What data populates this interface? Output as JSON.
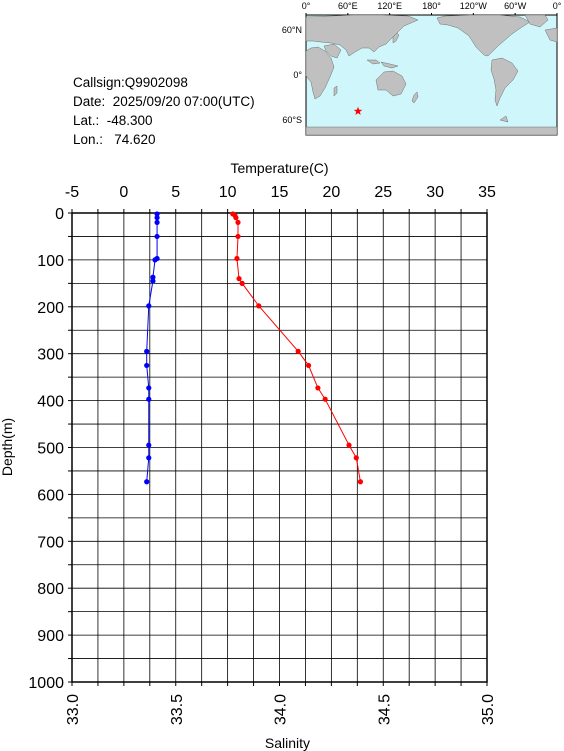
{
  "info": {
    "callsign": "Callsign:Q9902098",
    "date": "Date:  2025/09/20 07:00(UTC)",
    "lat": "Lat.:  -48.300",
    "lon": "Lon.:   74.620"
  },
  "map": {
    "lon_labels": [
      "0°",
      "60°E",
      "120°E",
      "180°",
      "120°W",
      "60°W",
      "0°"
    ],
    "lat_labels": [
      "60°N",
      "0°",
      "60°S"
    ],
    "marker": {
      "lon": 74.62,
      "lat": -48.3
    },
    "colors": {
      "ocean": "#cff7fb",
      "land": "#c0c0c0",
      "marker": "#ff0000"
    }
  },
  "chart_data": {
    "type": "line",
    "title": "",
    "ylabel": "Depth(m)",
    "ylim": [
      0,
      1000
    ],
    "y_inverted": true,
    "yticks": [
      "0",
      "100",
      "200",
      "300",
      "400",
      "500",
      "600",
      "700",
      "800",
      "900",
      "1000"
    ],
    "top_axis": {
      "label": "Temperature(C)",
      "range": [
        -5,
        35
      ],
      "ticks": [
        "-5",
        "0",
        "5",
        "10",
        "15",
        "20",
        "25",
        "30",
        "35"
      ]
    },
    "bottom_axis": {
      "label": "Salinity",
      "range": [
        33.0,
        35.0
      ],
      "ticks": [
        "33.0",
        "33.5",
        "34.0",
        "34.5",
        "35.0"
      ]
    },
    "grid": true,
    "series": [
      {
        "axis": "top",
        "color": "#ff0000",
        "points": [
          [
            10.5,
            2
          ],
          [
            10.7,
            5
          ],
          [
            10.8,
            10
          ],
          [
            11.0,
            20
          ],
          [
            11.0,
            50
          ],
          [
            10.9,
            97
          ],
          [
            11.1,
            140
          ],
          [
            11.4,
            150
          ],
          [
            13.0,
            198
          ],
          [
            16.8,
            295
          ],
          [
            17.8,
            325
          ],
          [
            18.7,
            373
          ],
          [
            19.4,
            397
          ],
          [
            21.7,
            495
          ],
          [
            22.4,
            522
          ],
          [
            22.8,
            573
          ]
        ]
      },
      {
        "axis": "bottom",
        "color": "#0000ff",
        "points": [
          [
            33.41,
            2
          ],
          [
            33.41,
            10
          ],
          [
            33.41,
            20
          ],
          [
            33.41,
            50
          ],
          [
            33.41,
            97
          ],
          [
            33.4,
            100
          ],
          [
            33.39,
            137
          ],
          [
            33.39,
            145
          ],
          [
            33.37,
            198
          ],
          [
            33.36,
            295
          ],
          [
            33.36,
            325
          ],
          [
            33.37,
            373
          ],
          [
            33.37,
            397
          ],
          [
            33.37,
            495
          ],
          [
            33.37,
            522
          ],
          [
            33.36,
            573
          ]
        ]
      }
    ]
  }
}
